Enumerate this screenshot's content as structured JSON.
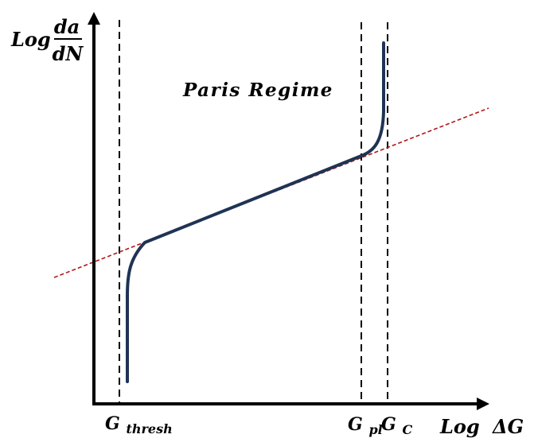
{
  "y_axis_label": {
    "prefix": "Log",
    "numerator": "da",
    "denominator": "dN"
  },
  "x_axis_label": {
    "prefix": "Log",
    "symbol": "ΔG"
  },
  "regime_label": "Paris Regime",
  "markers": {
    "threshold": {
      "base": "G",
      "subscript": "thresh"
    },
    "plastic": {
      "base": "G",
      "subscript": "pl"
    },
    "critical": {
      "base": "G",
      "subscript": "C"
    }
  },
  "colors": {
    "axis": "#000000",
    "curve": "#1f3354",
    "fit_line": "#b01818",
    "marker_line": "#000000"
  }
}
